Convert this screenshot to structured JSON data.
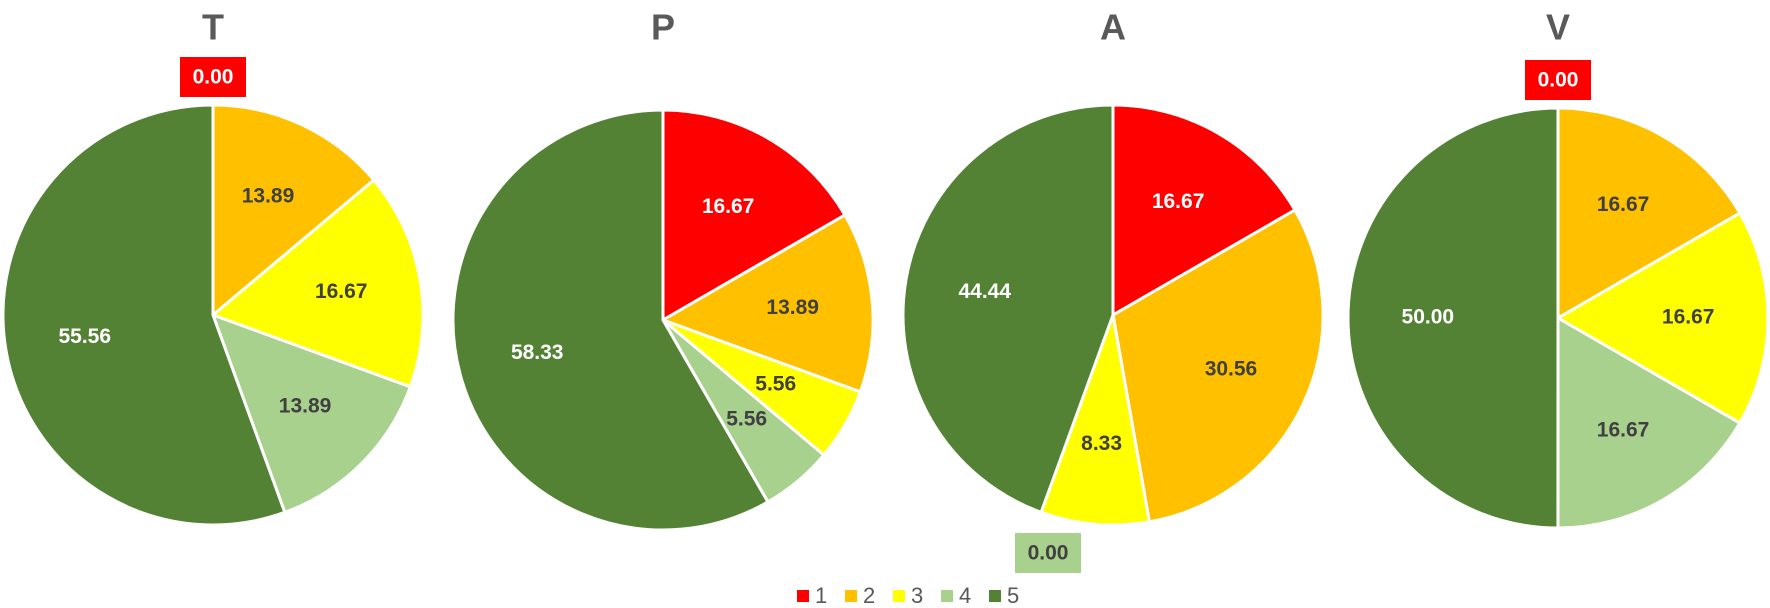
{
  "chart_data": [
    {
      "type": "pie",
      "title": "T",
      "categories": [
        "1",
        "2",
        "3",
        "4",
        "5"
      ],
      "values": [
        0.0,
        13.89,
        16.67,
        13.89,
        55.56
      ],
      "labels": [
        "0.00",
        "13.89",
        "16.67",
        "13.89",
        "55.56"
      ]
    },
    {
      "type": "pie",
      "title": "P",
      "categories": [
        "1",
        "2",
        "3",
        "4",
        "5"
      ],
      "values": [
        16.67,
        13.89,
        5.56,
        5.56,
        58.33
      ],
      "labels": [
        "16.67",
        "13.89",
        "5.56",
        "5.56",
        "58.33"
      ]
    },
    {
      "type": "pie",
      "title": "A",
      "categories": [
        "1",
        "2",
        "3",
        "4",
        "5"
      ],
      "values": [
        16.67,
        30.56,
        8.33,
        0.0,
        44.44
      ],
      "labels": [
        "16.67",
        "30.56",
        "8.33",
        "0.00",
        "44.44"
      ]
    },
    {
      "type": "pie",
      "title": "V",
      "categories": [
        "1",
        "2",
        "3",
        "4",
        "5"
      ],
      "values": [
        0.0,
        16.67,
        16.67,
        16.67,
        50.0
      ],
      "labels": [
        "0.00",
        "16.67",
        "16.67",
        "16.67",
        "50.00"
      ]
    }
  ],
  "legend": {
    "placement": "bottom-center",
    "items": [
      {
        "label": "1",
        "color": "#FF0000"
      },
      {
        "label": "2",
        "color": "#FFC000"
      },
      {
        "label": "3",
        "color": "#FFFF00"
      },
      {
        "label": "4",
        "color": "#A9D18E"
      },
      {
        "label": "5",
        "color": "#548235"
      }
    ]
  },
  "label_text_colors": {
    "1": "#FFFFFF",
    "2": "#404040",
    "3": "#404040",
    "4": "#404040",
    "5": "#FFFFFF"
  }
}
